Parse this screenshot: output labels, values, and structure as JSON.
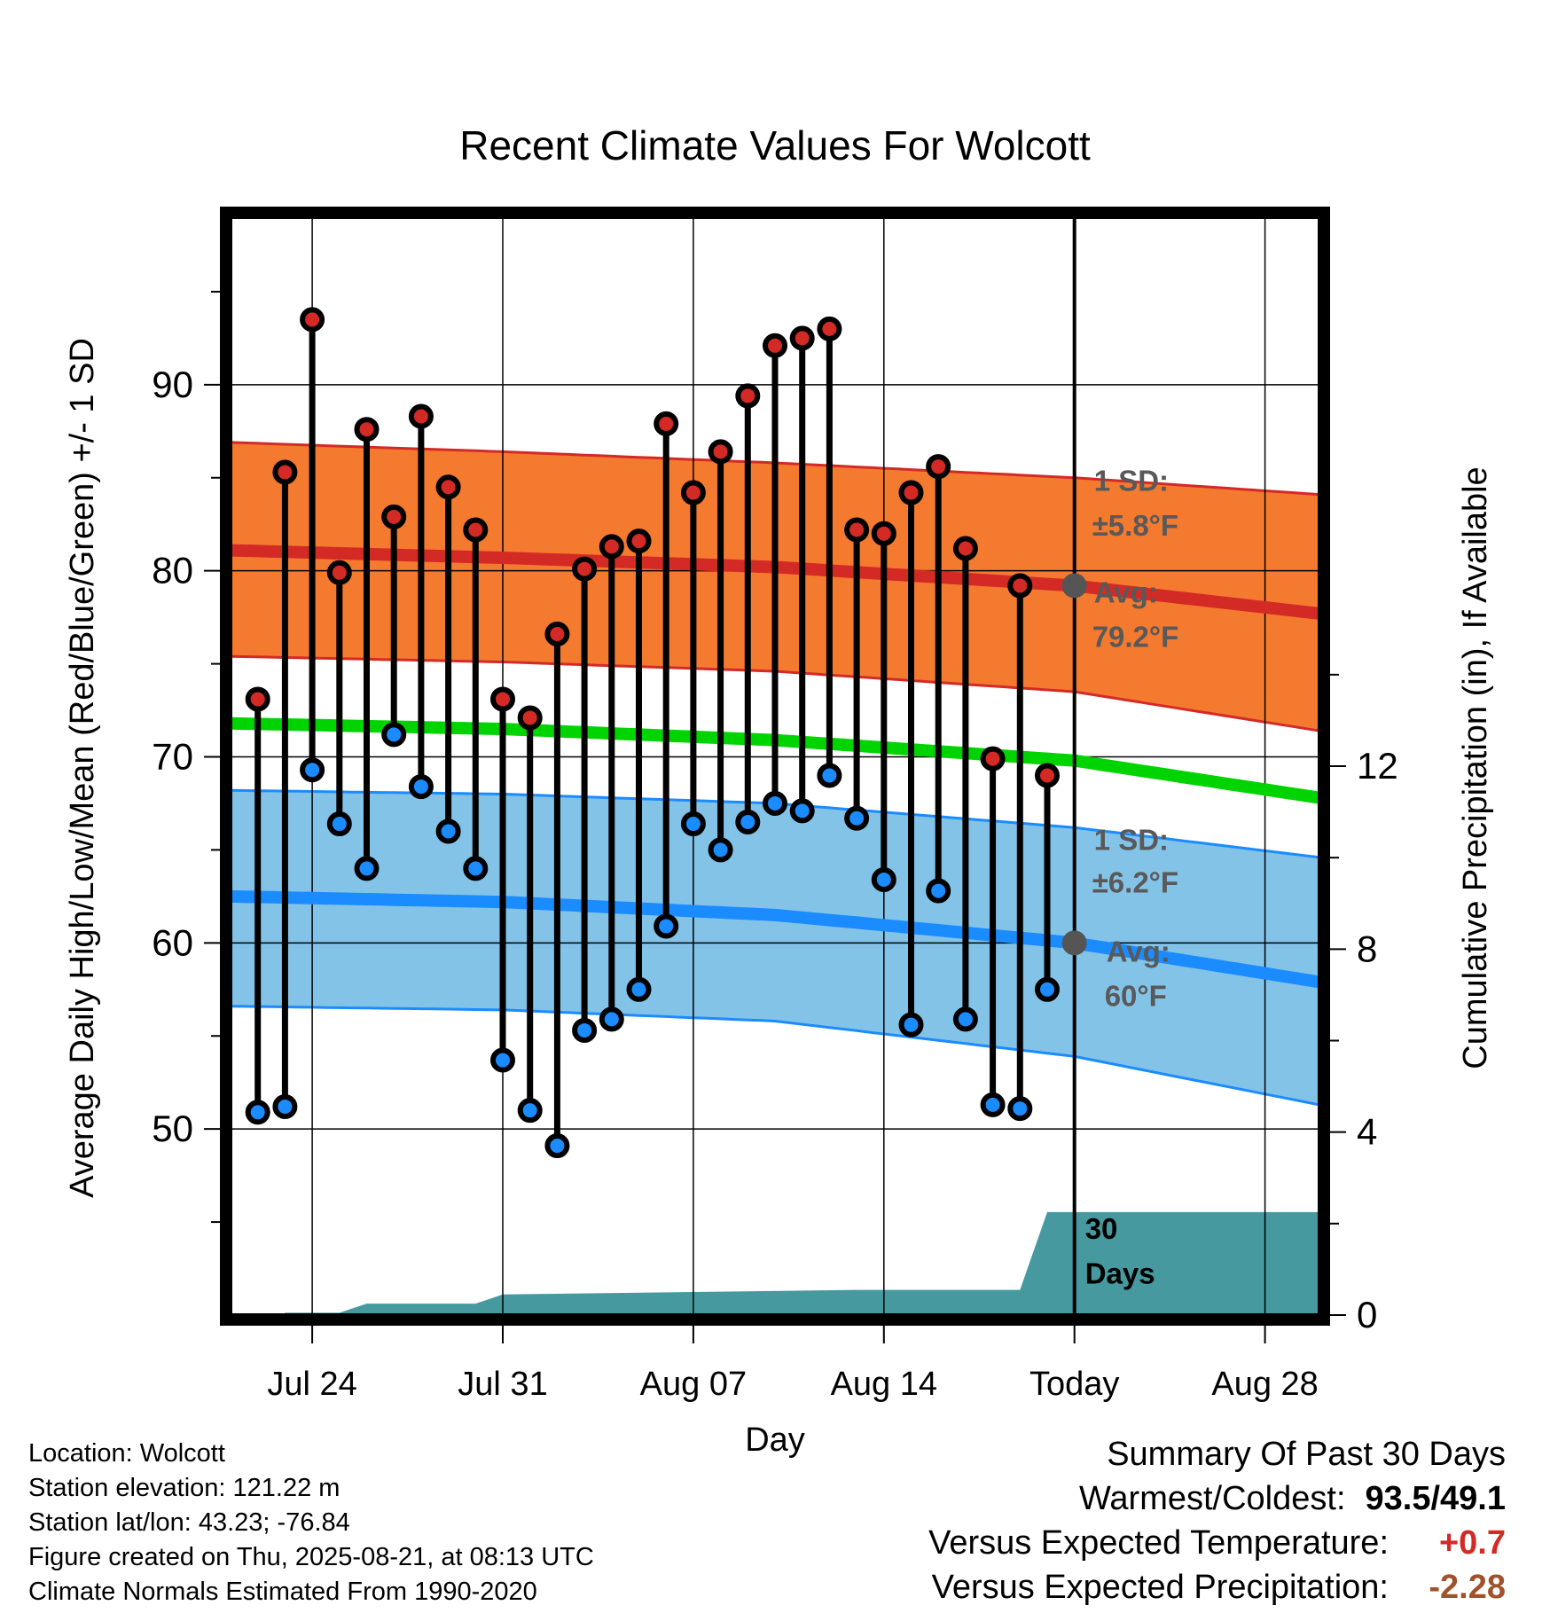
{
  "chart_data": {
    "type": "line",
    "title": "Recent Climate Values For Wolcott",
    "xlabel": "Day",
    "ylabel": "Average Daily High/Low/Mean (Red/Blue/Green) +/- 1 SD",
    "y2label": "Cumulative Precipitation (in), If Available",
    "x_tick_labels": [
      "Jul 24",
      "Jul 31",
      "Aug 07",
      "Aug 14",
      "Today",
      "Aug 28"
    ],
    "x_tick_dates": [
      "2025-07-24",
      "2025-07-31",
      "2025-08-07",
      "2025-08-14",
      "2025-08-21",
      "2025-08-28"
    ],
    "x_range": [
      "2025-07-21",
      "2025-08-30"
    ],
    "ylim": [
      40,
      99
    ],
    "yticks": [
      50,
      60,
      70,
      80,
      90
    ],
    "y2lim": [
      0,
      24
    ],
    "y2ticks": [
      0,
      4,
      8,
      12
    ],
    "today": "2025-08-21",
    "daily": {
      "dates": [
        "2025-07-22",
        "2025-07-23",
        "2025-07-24",
        "2025-07-25",
        "2025-07-26",
        "2025-07-27",
        "2025-07-28",
        "2025-07-29",
        "2025-07-30",
        "2025-07-31",
        "2025-08-01",
        "2025-08-02",
        "2025-08-03",
        "2025-08-04",
        "2025-08-05",
        "2025-08-06",
        "2025-08-07",
        "2025-08-08",
        "2025-08-09",
        "2025-08-10",
        "2025-08-11",
        "2025-08-12",
        "2025-08-13",
        "2025-08-14",
        "2025-08-15",
        "2025-08-16",
        "2025-08-17",
        "2025-08-18",
        "2025-08-19",
        "2025-08-20"
      ],
      "high": [
        73.1,
        85.3,
        93.5,
        79.9,
        87.6,
        82.9,
        88.3,
        84.5,
        82.2,
        73.1,
        72.1,
        76.6,
        80.1,
        81.3,
        81.6,
        87.9,
        84.2,
        86.4,
        89.4,
        92.1,
        92.5,
        93.0,
        82.2,
        82.0,
        84.2,
        85.6,
        81.2,
        69.9,
        79.2,
        69.0
      ],
      "low": [
        50.9,
        51.2,
        69.3,
        66.4,
        64.0,
        71.2,
        68.4,
        66.0,
        64.0,
        53.7,
        51.0,
        49.1,
        55.3,
        55.9,
        57.5,
        60.9,
        66.4,
        65.0,
        66.5,
        67.5,
        67.1,
        69.0,
        66.7,
        63.4,
        55.6,
        62.8,
        55.9,
        51.3,
        51.1,
        57.5
      ]
    },
    "normals": {
      "dates": [
        "2025-07-21",
        "2025-07-31",
        "2025-08-10",
        "2025-08-21",
        "2025-08-30"
      ],
      "high_avg": [
        81.1,
        80.7,
        80.2,
        79.2,
        77.7
      ],
      "high_plus_sd": [
        86.9,
        86.4,
        85.8,
        85.0,
        84.1
      ],
      "high_minus_sd": [
        75.4,
        75.1,
        74.6,
        73.5,
        71.4
      ],
      "low_avg": [
        62.5,
        62.2,
        61.5,
        60.0,
        57.9
      ],
      "low_plus_sd": [
        68.2,
        68.0,
        67.5,
        66.2,
        64.6
      ],
      "low_minus_sd": [
        56.6,
        56.4,
        55.8,
        53.9,
        51.3
      ],
      "mean_avg": [
        71.8,
        71.5,
        70.9,
        69.8,
        67.8
      ]
    },
    "precip_cumulative": {
      "dates": [
        "2025-07-21",
        "2025-07-23",
        "2025-07-23",
        "2025-07-25",
        "2025-07-26",
        "2025-07-30",
        "2025-07-31",
        "2025-08-13",
        "2025-08-19",
        "2025-08-20",
        "2025-08-30"
      ],
      "values": [
        0,
        0,
        0.05,
        0.05,
        0.25,
        0.25,
        0.45,
        0.55,
        0.55,
        2.25,
        2.25
      ]
    },
    "annotations": {
      "high_sd_label": "1 SD:",
      "high_sd_value": "±5.8°F",
      "high_avg_label": "Avg:",
      "high_avg_value": "79.2°F",
      "low_sd_label": "1 SD:",
      "low_sd_value": "±6.2°F",
      "low_avg_label": "Avg:",
      "low_avg_value": "60°F",
      "days_label_1": "30",
      "days_label_2": "Days"
    },
    "colors": {
      "high_band": "#f47a30",
      "high_line": "#d42a26",
      "low_band": "#84c3e8",
      "low_line": "#1a8cff",
      "mean_line": "#00d400",
      "precip": "#45999f",
      "high_marker": "#d42a26",
      "low_marker": "#1a8cff",
      "annotation_text": "#595959"
    }
  },
  "info": {
    "location": "Location: Wolcott",
    "elevation": "Station elevation: 121.22 m",
    "latlon": "Station lat/lon: 43.23; -76.84",
    "created": "Figure created on Thu, 2025-08-21, at 08:13 UTC",
    "normals": "Climate Normals Estimated From 1990-2020"
  },
  "summary": {
    "heading": "Summary Of Past 30 Days",
    "warm_cold_label": "Warmest/Coldest:",
    "warm_cold_value": "93.5/49.1",
    "temp_label": "Versus Expected Temperature:",
    "temp_value": "+0.7",
    "temp_color": "#d42a26",
    "precip_label": "Versus Expected Precipitation:",
    "precip_value": "-2.28",
    "precip_color": "#a0522d"
  }
}
